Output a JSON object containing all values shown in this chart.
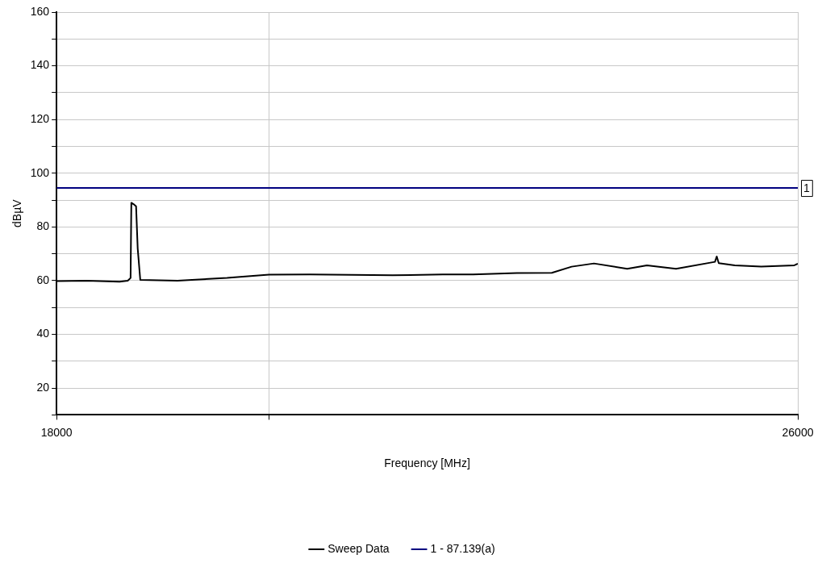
{
  "chart_data": {
    "type": "line",
    "xlabel": "Frequency [MHz]",
    "ylabel": "dBµV",
    "log": "x",
    "grid": true,
    "legend": "bottom",
    "marker": "none",
    "line_style": "solid",
    "xlim": [
      18000,
      26000
    ],
    "xticks": [
      18000,
      {
        "value": 20000,
        "label": null
      },
      26000
    ],
    "ylim": [
      10,
      160
    ],
    "yticks": [
      {
        "value": 10,
        "label": null
      },
      20,
      {
        "value": 30,
        "label": null
      },
      40,
      {
        "value": 50,
        "label": null
      },
      60,
      {
        "value": 70,
        "label": null
      },
      80,
      {
        "value": 90,
        "label": null
      },
      100,
      {
        "value": 110,
        "label": null
      },
      120,
      {
        "value": 130,
        "label": null
      },
      140,
      {
        "value": 150,
        "label": null
      },
      160
    ],
    "series": [
      {
        "name": "Sweep Data",
        "color": "#000000",
        "x": [
          18000,
          18268,
          18571,
          18647,
          18673,
          18680,
          18700,
          18724,
          18739,
          18763,
          19113,
          19589,
          20000,
          20411,
          21267,
          21800,
          22131,
          22619,
          23013,
          23240,
          23499,
          23890,
          24125,
          24476,
          24953,
          24975,
          25000,
          25200,
          25533,
          25956,
          26000
        ],
        "values": [
          59.8,
          60,
          59.6,
          60,
          61,
          89,
          88.5,
          87.7,
          72,
          60.3,
          60,
          61,
          62.2,
          62.3,
          62,
          62.3,
          62.3,
          62.8,
          62.9,
          65.2,
          66.4,
          64.4,
          65.7,
          64.4,
          67,
          69,
          66.5,
          65.7,
          65.2,
          65.7,
          66.3
        ]
      },
      {
        "name": "1 - 87.139(a)",
        "color": "#000080",
        "x": [
          18000,
          26000
        ],
        "values": [
          94.5,
          94.5
        ]
      }
    ],
    "annotations": [
      {
        "text": "1",
        "x": 26000,
        "y": 94.5
      }
    ]
  }
}
